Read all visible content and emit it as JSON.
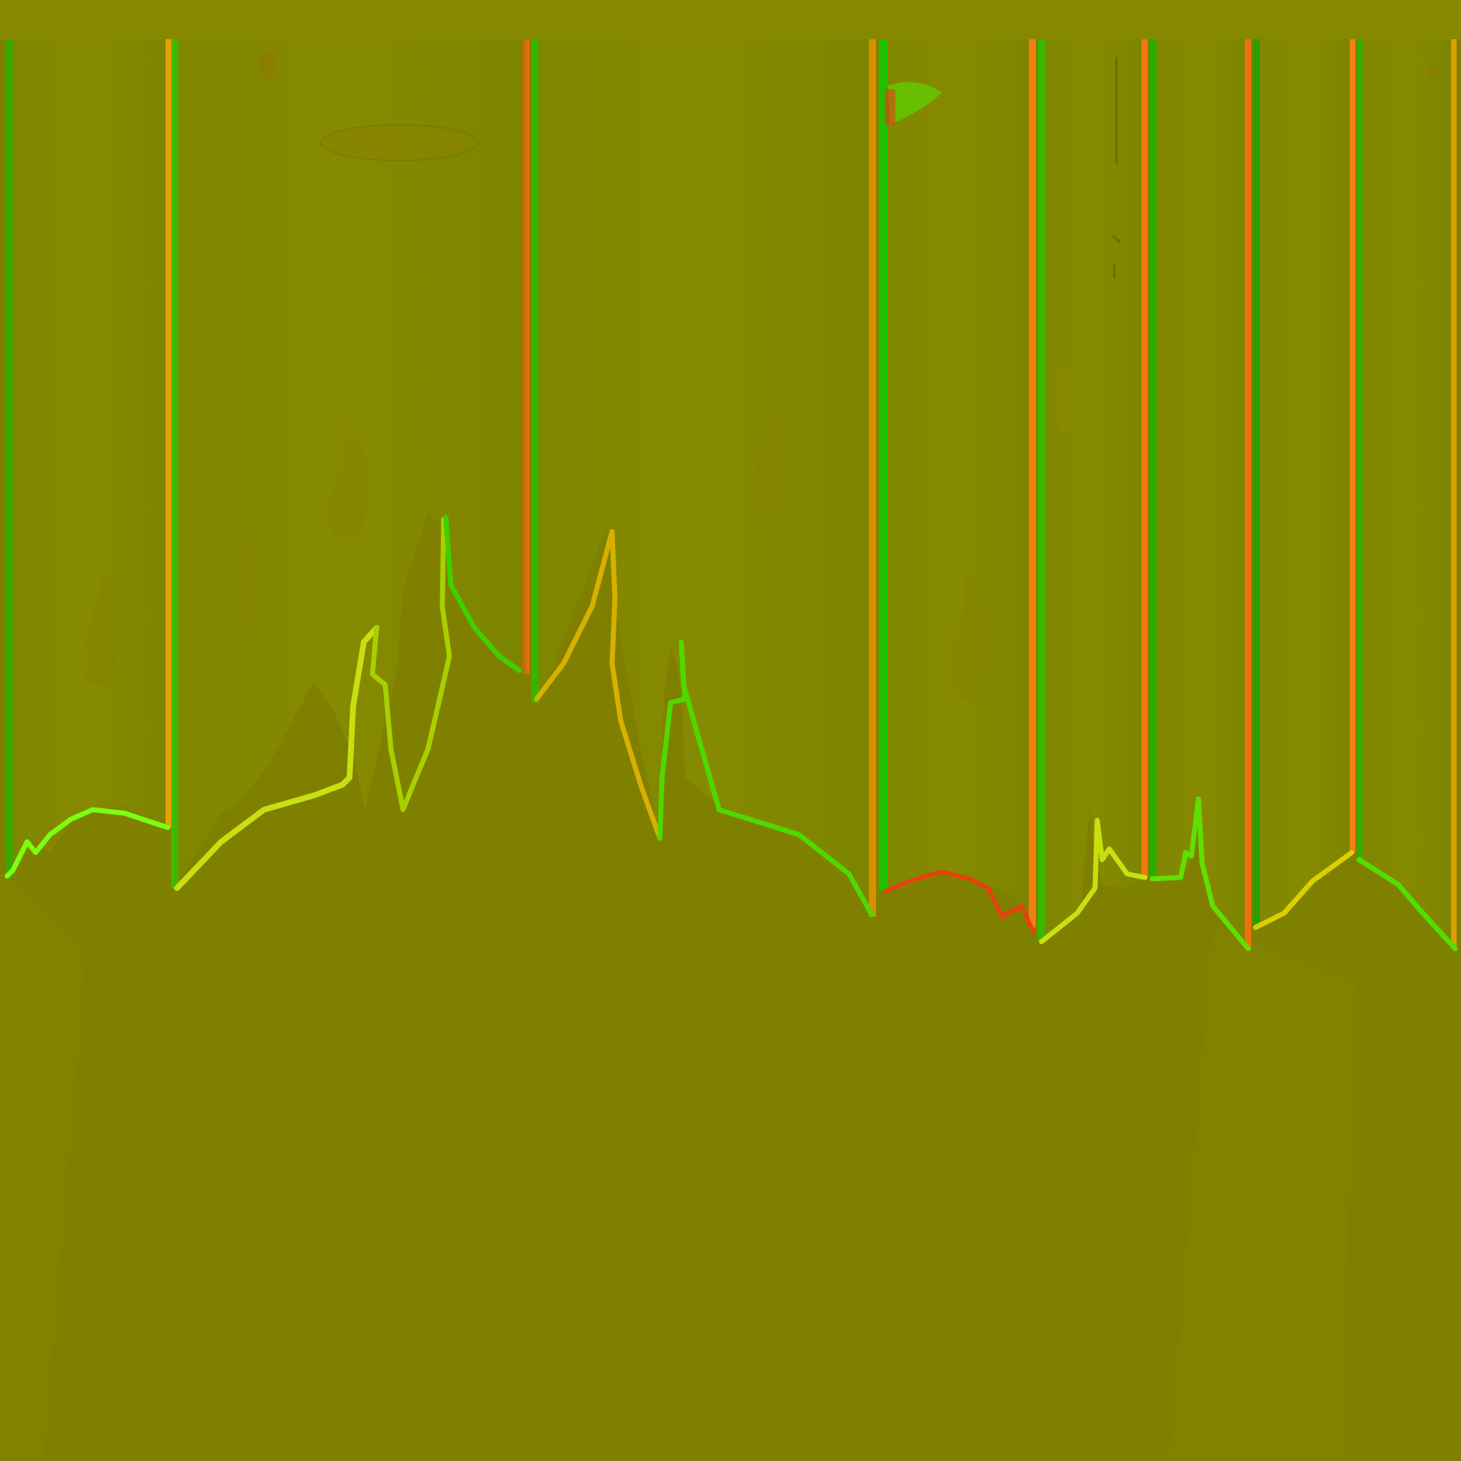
{
  "texture": {
    "kind": "normal-map",
    "colors": {
      "base": "#808000",
      "panel": "#838a00",
      "panel_shade": "#7d8400",
      "highlight_green": "#22c800",
      "highlight_lime": "#7aff10",
      "highlight_orange": "#f07810",
      "highlight_yellow": "#d8c400"
    }
  }
}
